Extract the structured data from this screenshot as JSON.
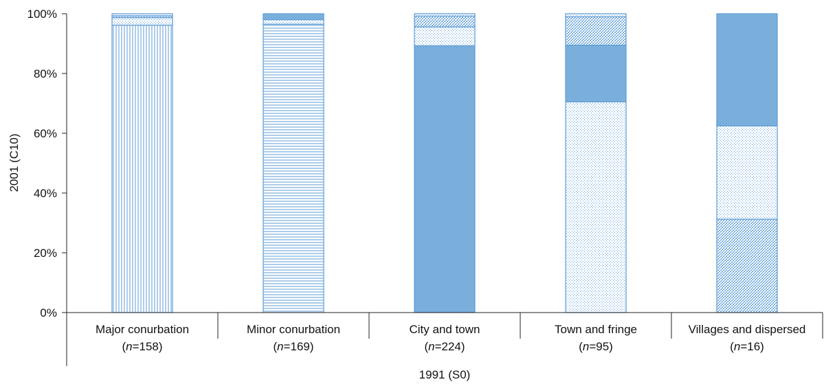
{
  "chart_data": {
    "type": "bar",
    "stacked": true,
    "normalized": true,
    "xlabel": "1991 (S0)",
    "ylabel": "2001 (C10)",
    "yticks": [
      "0%",
      "20%",
      "40%",
      "60%",
      "80%",
      "100%"
    ],
    "ylim": [
      0,
      100
    ],
    "categories": [
      {
        "label": "Major conurbation",
        "n_var": "n",
        "n_eq": "=",
        "n_value": "158"
      },
      {
        "label": "Minor conurbation",
        "n_var": "n",
        "n_eq": "=",
        "n_value": "169"
      },
      {
        "label": "City and town",
        "n_var": "n",
        "n_eq": "=",
        "n_value": "224"
      },
      {
        "label": "Town and fringe",
        "n_var": "n",
        "n_eq": "=",
        "n_value": "95"
      },
      {
        "label": "Villages and dispersed",
        "n_var": "n",
        "n_eq": "=",
        "n_value": "16"
      }
    ],
    "segment_patterns": [
      "vertical-lines",
      "horizontal-lines",
      "solid",
      "dots",
      "crosshatch"
    ],
    "series": [
      {
        "pattern": "vertical-lines",
        "values": [
          96.2,
          0.0,
          0.0,
          0.0,
          0.0
        ]
      },
      {
        "pattern": "horizontal-lines",
        "values": [
          0.0,
          96.5,
          0.0,
          0.0,
          0.0
        ]
      },
      {
        "pattern": "crosshatch",
        "values": [
          0.0,
          0.0,
          0.0,
          0.0,
          31.25
        ]
      },
      {
        "pattern": "solid-base",
        "values": [
          0.0,
          0.0,
          89.3,
          0.0,
          0.0
        ]
      },
      {
        "pattern": "dots",
        "values": [
          2.5,
          1.5,
          6.3,
          70.5,
          31.25
        ]
      },
      {
        "pattern": "solid",
        "values": [
          0.0,
          2.0,
          0.0,
          19.0,
          37.5
        ]
      },
      {
        "pattern": "crosshatch-top",
        "values": [
          0.6,
          0.0,
          3.6,
          9.5,
          0.0
        ]
      },
      {
        "pattern": "dots-top",
        "values": [
          0.7,
          0.0,
          0.8,
          1.0,
          0.0
        ]
      }
    ],
    "colors": {
      "accent": "#5b9bd5",
      "fill": "#7aafdc",
      "axis": "#222222"
    },
    "grid": false,
    "legend": "none"
  }
}
